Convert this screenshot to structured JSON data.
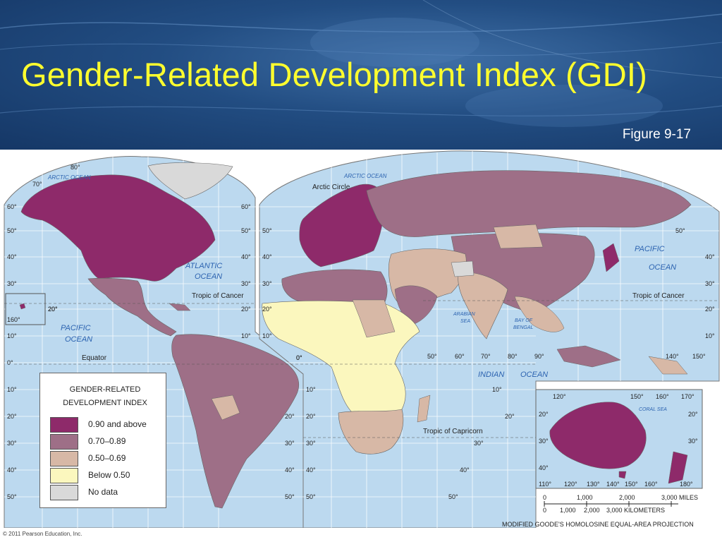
{
  "header": {
    "title": "Gender-Related Development Index (GDI)",
    "figure_label": "Figure 9-17"
  },
  "legend": {
    "title": "GENDER-RELATED DEVELOPMENT INDEX",
    "items": [
      {
        "label": "0.90 and above",
        "color": "#8e2a6a"
      },
      {
        "label": "0.70–0.89",
        "color": "#9e6f87"
      },
      {
        "label": "0.50–0.69",
        "color": "#d7b8a6"
      },
      {
        "label": "Below 0.50",
        "color": "#fbf7be"
      },
      {
        "label": "No data",
        "color": "#d9d9d9"
      }
    ]
  },
  "colors": {
    "ocean": "#bcd9ef",
    "grid": "#ffffff",
    "header_bg": "#1f4779",
    "title_text": "#ffff2e"
  },
  "map_labels": {
    "arctic_ocean_west": "ARCTIC OCEAN",
    "arctic_ocean_east": "ARCTIC OCEAN",
    "arctic_circle": "Arctic Circle",
    "atlantic_ocean_1": "ATLANTIC",
    "atlantic_ocean_2": "OCEAN",
    "pacific_ocean_west_1": "PACIFIC",
    "pacific_ocean_west_2": "OCEAN",
    "pacific_ocean_east_1": "PACIFIC",
    "pacific_ocean_east_2": "OCEAN",
    "indian_ocean": "INDIAN",
    "indian_ocean_2": "OCEAN",
    "arabian_sea_1": "ARABIAN",
    "arabian_sea_2": "SEA",
    "bay_of_bengal_1": "BAY OF",
    "bay_of_bengal_2": "BENGAL",
    "coral_sea": "CORAL SEA",
    "tropic_cancer_west": "Tropic of Cancer",
    "tropic_cancer_east": "Tropic of Cancer",
    "equator": "Equator",
    "tropic_capricorn": "Tropic of Capricorn"
  },
  "lat_labels_left": [
    "80°",
    "70°",
    "60°",
    "50°",
    "40°",
    "30°",
    "20°",
    "10°",
    "0°",
    "10°",
    "20°",
    "30°",
    "40°",
    "50°"
  ],
  "lat_labels_mid": [
    "60°",
    "50°",
    "40°",
    "30°",
    "20°",
    "10°",
    "20°",
    "30°",
    "40°",
    "50°"
  ],
  "lat_labels_africa_left": [
    "50°",
    "40°",
    "30°",
    "20°",
    "10°",
    "0°",
    "10°",
    "20°",
    "30°",
    "40°",
    "50°"
  ],
  "lat_labels_right": [
    "50°",
    "40°",
    "30°",
    "20°",
    "10°"
  ],
  "lon_labels_africa": [
    "0°",
    "50°",
    "60°",
    "70°",
    "80°",
    "90°"
  ],
  "lon_labels_right": [
    "140°",
    "150°"
  ],
  "inset_hawaii": [
    "20°",
    "160°"
  ],
  "australia_inset": {
    "top_lon": [
      "120°",
      "150°",
      "160°",
      "170°"
    ],
    "left_lat": [
      "20°",
      "30°",
      "40°"
    ],
    "right_lat": [
      "20°",
      "30°"
    ],
    "bottom_lon": [
      "110°",
      "120°",
      "130°",
      "140°",
      "150°",
      "160°",
      "180°"
    ]
  },
  "africa_right_lat": [
    "10°",
    "20°",
    "30°",
    "40°",
    "50°"
  ],
  "scale": {
    "miles": [
      "0",
      "1,000",
      "2,000",
      "3,000 MILES"
    ],
    "km": [
      "0",
      "1,000",
      "2,000",
      "3,000 KILOMETERS"
    ]
  },
  "projection": "MODIFIED GOODE'S HOMOLOSINE EQUAL-AREA PROJECTION",
  "copyright": "© 2011 Pearson Education, Inc."
}
